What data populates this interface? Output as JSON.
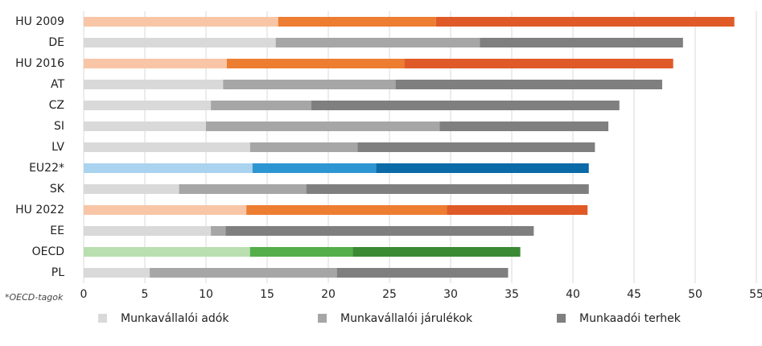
{
  "chart_data": {
    "type": "stacked-barh",
    "categories": [
      "HU 2009",
      "DE",
      "HU 2016",
      "AT",
      "CZ",
      "SI",
      "LV",
      "EU22*",
      "SK",
      "HU 2022",
      "EE",
      "OECD",
      "PL"
    ],
    "series": [
      {
        "name": "Munkavállalói adók",
        "color": "#d9d9d9",
        "values": [
          15.9,
          15.7,
          11.7,
          11.4,
          10.4,
          10.0,
          13.6,
          13.8,
          7.8,
          13.3,
          10.4,
          13.6,
          5.4
        ]
      },
      {
        "name": "Munkavállalói járulékok",
        "color": "#a6a6a6",
        "values": [
          12.9,
          16.7,
          14.5,
          14.1,
          8.2,
          19.1,
          8.8,
          10.1,
          10.4,
          16.4,
          1.2,
          8.4,
          15.3
        ]
      },
      {
        "name": "Munkaadói terhek",
        "color": "#7f7f7f",
        "values": [
          24.4,
          16.6,
          22.0,
          21.8,
          25.2,
          13.8,
          19.4,
          17.4,
          23.1,
          11.5,
          25.2,
          13.7,
          14.0
        ]
      }
    ],
    "row_colors": [
      [
        "#f8c6a6",
        "#ed7d31",
        "#e05a28"
      ],
      null,
      [
        "#f8c6a6",
        "#ed7d31",
        "#e05a28"
      ],
      null,
      null,
      null,
      null,
      [
        "#a9d3ef",
        "#2e95d3",
        "#0b6aa8"
      ],
      null,
      [
        "#f8c6a6",
        "#ed7d31",
        "#e05a28"
      ],
      null,
      [
        "#b9dfb0",
        "#54ae4a",
        "#3a8a34"
      ],
      null
    ],
    "xlim": [
      0,
      55
    ],
    "xticks": [
      0,
      5,
      10,
      15,
      20,
      25,
      30,
      35,
      40,
      45,
      50,
      55
    ],
    "grid": true,
    "note": "*OECD-tagok"
  }
}
